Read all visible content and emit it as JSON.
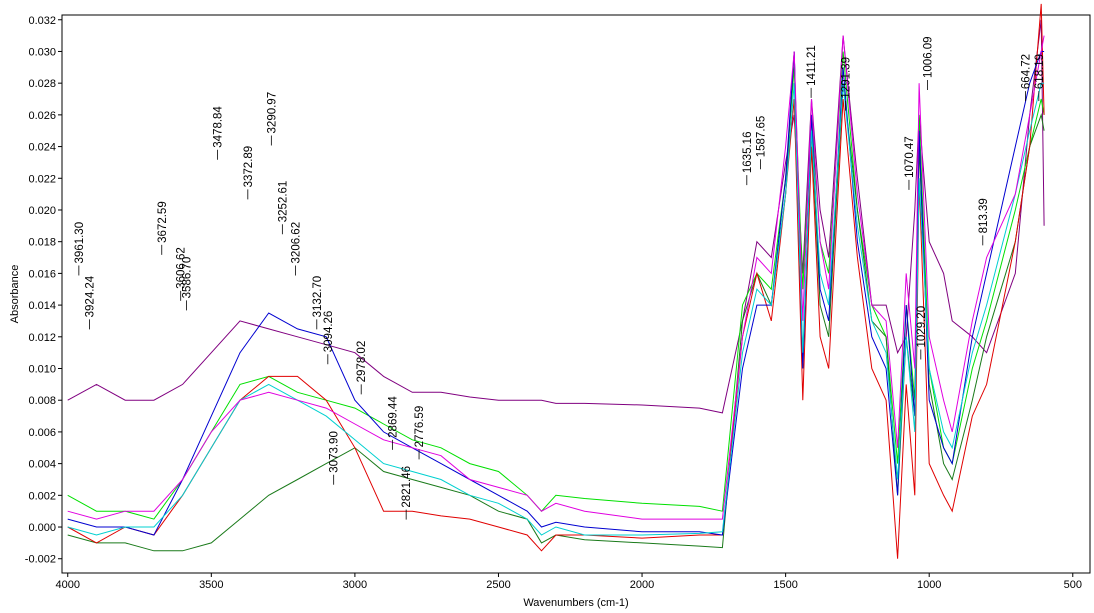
{
  "chart_data": {
    "type": "line",
    "x_label": "Wavenumbers (cm-1)",
    "y_label": "Absorbance",
    "xlim": [
      4020,
      440
    ],
    "xticks": [
      4000,
      3500,
      3000,
      2500,
      2000,
      1500,
      1000,
      500
    ],
    "ylim": [
      -0.0029,
      0.0323
    ],
    "yticks": [
      {
        "value": -0.002,
        "label": "-0.002"
      },
      {
        "value": 0,
        "label": "0.000"
      },
      {
        "value": 0.002,
        "label": "0.002"
      },
      {
        "value": 0.004,
        "label": "0.004"
      },
      {
        "value": 0.006,
        "label": "0.006"
      },
      {
        "value": 0.008,
        "label": "0.008"
      },
      {
        "value": 0.01,
        "label": "0.010"
      },
      {
        "value": 0.012,
        "label": "0.012"
      },
      {
        "value": 0.014,
        "label": "0.014"
      },
      {
        "value": 0.016,
        "label": "0.016"
      },
      {
        "value": 0.018,
        "label": "0.018"
      },
      {
        "value": 0.02,
        "label": "0.020"
      },
      {
        "value": 0.022,
        "label": "0.022"
      },
      {
        "value": 0.024,
        "label": "0.024"
      },
      {
        "value": 0.026,
        "label": "0.026"
      },
      {
        "value": 0.028,
        "label": "0.028"
      },
      {
        "value": 0.03,
        "label": "0.030"
      },
      {
        "value": 0.032,
        "label": "0.032"
      }
    ],
    "grid": false,
    "x": [
      4000,
      3900,
      3800,
      3700,
      3600,
      3500,
      3400,
      3300,
      3200,
      3100,
      3000,
      2900,
      2800,
      2700,
      2600,
      2500,
      2400,
      2350,
      2300,
      2200,
      2000,
      1800,
      1720,
      1650,
      1600,
      1550,
      1500,
      1470,
      1440,
      1410,
      1380,
      1350,
      1300,
      1250,
      1200,
      1150,
      1110,
      1080,
      1050,
      1035,
      1000,
      950,
      920,
      850,
      800,
      700,
      650,
      610,
      600
    ],
    "series": [
      {
        "color": "#800080",
        "values": [
          0.008,
          0.009,
          0.008,
          0.008,
          0.009,
          0.011,
          0.013,
          0.0125,
          0.012,
          0.0115,
          0.011,
          0.0095,
          0.0085,
          0.0085,
          0.0082,
          0.008,
          0.008,
          0.008,
          0.0078,
          0.0078,
          0.0077,
          0.0075,
          0.0072,
          0.013,
          0.018,
          0.017,
          0.023,
          0.026,
          0.016,
          0.027,
          0.02,
          0.017,
          0.031,
          0.022,
          0.014,
          0.014,
          0.011,
          0.012,
          0.02,
          0.026,
          0.018,
          0.016,
          0.013,
          0.012,
          0.011,
          0.016,
          0.026,
          0.032,
          0.019
        ]
      },
      {
        "color": "#00e000",
        "values": [
          0.002,
          0.001,
          0.001,
          0.0005,
          0.003,
          0.006,
          0.009,
          0.0095,
          0.0085,
          0.008,
          0.0075,
          0.0065,
          0.0055,
          0.005,
          0.004,
          0.0035,
          0.002,
          0.001,
          0.002,
          0.0018,
          0.0015,
          0.0013,
          0.001,
          0.014,
          0.016,
          0.015,
          0.022,
          0.029,
          0.015,
          0.026,
          0.018,
          0.016,
          0.03,
          0.02,
          0.014,
          0.012,
          0.004,
          0.014,
          0.008,
          0.026,
          0.01,
          0.005,
          0.004,
          0.01,
          0.013,
          0.02,
          0.024,
          0.027,
          0.026
        ]
      },
      {
        "color": "#1a7a1a",
        "values": [
          -0.0005,
          -0.001,
          -0.001,
          -0.0015,
          -0.0015,
          -0.001,
          0.0005,
          0.002,
          0.003,
          0.004,
          0.005,
          0.0035,
          0.003,
          0.0025,
          0.002,
          0.001,
          0.0005,
          -0.001,
          -0.0005,
          -0.0008,
          -0.001,
          -0.0012,
          -0.0013,
          0.013,
          0.016,
          0.014,
          0.021,
          0.03,
          0.01,
          0.025,
          0.014,
          0.012,
          0.028,
          0.02,
          0.013,
          0.012,
          0.002,
          0.012,
          0.007,
          0.024,
          0.009,
          0.004,
          0.003,
          0.008,
          0.012,
          0.018,
          0.024,
          0.026,
          0.025
        ]
      },
      {
        "color": "#e00000",
        "values": [
          0,
          -0.001,
          0,
          -0.0005,
          0.002,
          0.005,
          0.008,
          0.0095,
          0.0095,
          0.008,
          0.005,
          0.001,
          0.001,
          0.0007,
          0.0005,
          0,
          -0.0005,
          -0.0015,
          -0.0005,
          -0.0005,
          -0.0007,
          -0.0005,
          -0.0005,
          0.012,
          0.016,
          0.013,
          0.021,
          0.027,
          0.008,
          0.024,
          0.012,
          0.01,
          0.027,
          0.017,
          0.01,
          0.008,
          -0.002,
          0.009,
          0.002,
          0.022,
          0.004,
          0.002,
          0.001,
          0.007,
          0.009,
          0.018,
          0.024,
          0.033,
          0.026
        ]
      },
      {
        "color": "#0000d0",
        "values": [
          0.0005,
          0,
          0,
          -0.0005,
          0.003,
          0.007,
          0.011,
          0.0135,
          0.0125,
          0.012,
          0.008,
          0.006,
          0.005,
          0.004,
          0.003,
          0.002,
          0.001,
          0,
          0.0003,
          0,
          -0.0003,
          -0.0003,
          -0.0005,
          0.01,
          0.014,
          0.014,
          0.022,
          0.03,
          0.01,
          0.026,
          0.015,
          0.013,
          0.029,
          0.018,
          0.012,
          0.01,
          0.002,
          0.014,
          0.007,
          0.025,
          0.008,
          0.005,
          0.004,
          0.012,
          0.016,
          0.024,
          0.028,
          0.03,
          0.03
        ]
      },
      {
        "color": "#00d0d0",
        "values": [
          0,
          -0.0005,
          0,
          0,
          0.002,
          0.005,
          0.008,
          0.009,
          0.008,
          0.007,
          0.0055,
          0.004,
          0.0035,
          0.003,
          0.002,
          0.0015,
          0.0005,
          -0.0005,
          0,
          -0.0005,
          -0.0005,
          -0.0004,
          -0.0003,
          0.011,
          0.015,
          0.014,
          0.021,
          0.028,
          0.011,
          0.025,
          0.016,
          0.014,
          0.028,
          0.019,
          0.013,
          0.011,
          0.003,
          0.012,
          0.006,
          0.022,
          0.01,
          0.006,
          0.005,
          0.011,
          0.014,
          0.021,
          0.025,
          0.028,
          0.028
        ]
      },
      {
        "color": "#e000e0",
        "values": [
          0.001,
          0.0005,
          0.001,
          0.001,
          0.003,
          0.006,
          0.008,
          0.0085,
          0.008,
          0.0075,
          0.0065,
          0.0055,
          0.005,
          0.0045,
          0.003,
          0.0025,
          0.002,
          0.001,
          0.0015,
          0.001,
          0.0005,
          0.0005,
          0.0005,
          0.012,
          0.017,
          0.016,
          0.024,
          0.03,
          0.013,
          0.027,
          0.018,
          0.015,
          0.031,
          0.021,
          0.014,
          0.013,
          0.005,
          0.016,
          0.01,
          0.028,
          0.012,
          0.008,
          0.006,
          0.013,
          0.017,
          0.021,
          0.026,
          0.03,
          0.031
        ]
      }
    ],
    "annotations": [
      {
        "x": 3961.3,
        "label": "3961.30",
        "y": 0.0165
      },
      {
        "x": 3924.24,
        "label": "3924.24",
        "y": 0.0131
      },
      {
        "x": 3672.59,
        "label": "3672.59",
        "y": 0.0178
      },
      {
        "x": 3606.62,
        "label": "3606.62",
        "y": 0.0149
      },
      {
        "x": 3586.7,
        "label": "3586.70",
        "y": 0.0143
      },
      {
        "x": 3478.84,
        "label": "3478.84",
        "y": 0.0238
      },
      {
        "x": 3372.89,
        "label": "3372.89",
        "y": 0.0213
      },
      {
        "x": 3290.97,
        "label": "3290.97",
        "y": 0.0247
      },
      {
        "x": 3252.61,
        "label": "3252.61",
        "y": 0.0191
      },
      {
        "x": 3206.62,
        "label": "3206.62",
        "y": 0.0165
      },
      {
        "x": 3132.7,
        "label": "3132.70",
        "y": 0.0131
      },
      {
        "x": 3094.26,
        "label": "3094.26",
        "y": 0.0109
      },
      {
        "x": 3073.9,
        "label": "3073.90",
        "y": 0.0033
      },
      {
        "x": 2978.02,
        "label": "2978.02",
        "y": 0.009
      },
      {
        "x": 2869.44,
        "label": "2869.44",
        "y": 0.0055
      },
      {
        "x": 2821.46,
        "label": "2821.46",
        "y": 0.0011
      },
      {
        "x": 2776.59,
        "label": "2776.59",
        "y": 0.0049
      },
      {
        "x": 1635.16,
        "label": "1635.16",
        "y": 0.0222
      },
      {
        "x": 1587.65,
        "label": "1587.65",
        "y": 0.0232
      },
      {
        "x": 1411.21,
        "label": "1411.21",
        "y": 0.0277
      },
      {
        "x": 1291.39,
        "label": "1291.39",
        "y": 0.0269
      },
      {
        "x": 1070.47,
        "label": "1070.47",
        "y": 0.0219
      },
      {
        "x": 1029.2,
        "label": "1029.20",
        "y": 0.0112
      },
      {
        "x": 1006.09,
        "label": "1006.09",
        "y": 0.0282
      },
      {
        "x": 813.39,
        "label": "813.39",
        "y": 0.0184
      },
      {
        "x": 664.72,
        "label": "664.72",
        "y": 0.0275
      },
      {
        "x": 618.19,
        "label": "618.19",
        "y": 0.0275
      }
    ]
  }
}
